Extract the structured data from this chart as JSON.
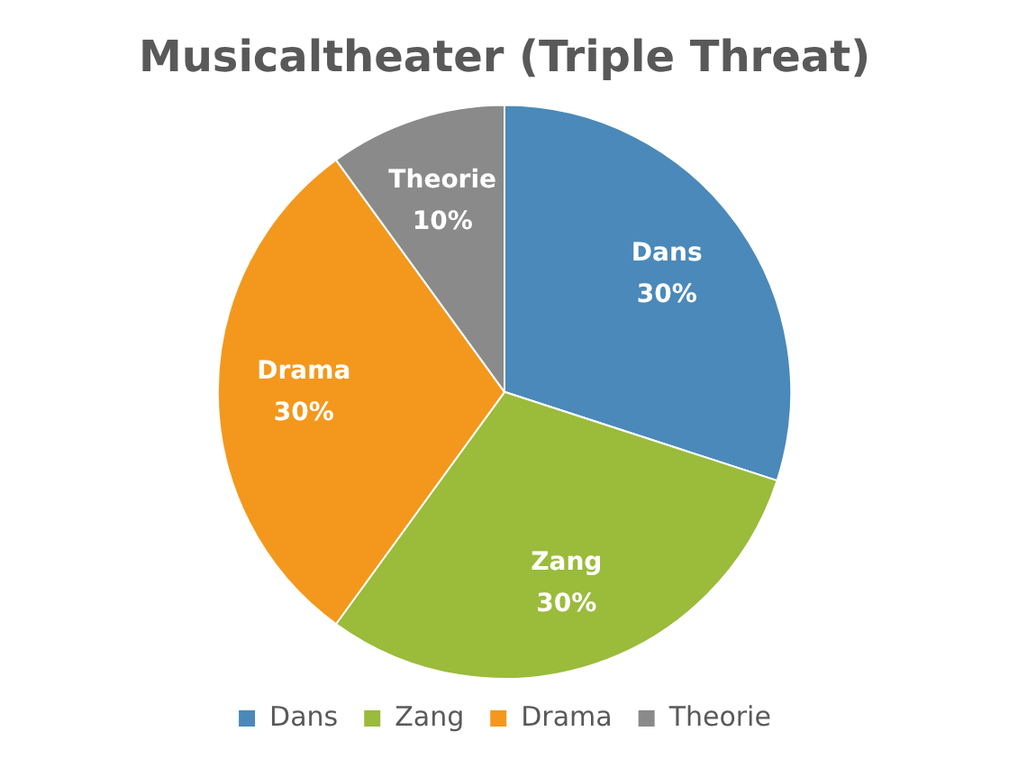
{
  "chart_data": {
    "type": "pie",
    "title": "Musicaltheater (Triple Threat)",
    "categories": [
      "Dans",
      "Zang",
      "Drama",
      "Theorie"
    ],
    "values": [
      30,
      30,
      30,
      10
    ],
    "colors": [
      "#4a89b9",
      "#9bbb3b",
      "#f3981d",
      "#8a8a8a"
    ],
    "value_labels": [
      "30%",
      "30%",
      "30%",
      "10%"
    ],
    "legend": "bottom"
  }
}
